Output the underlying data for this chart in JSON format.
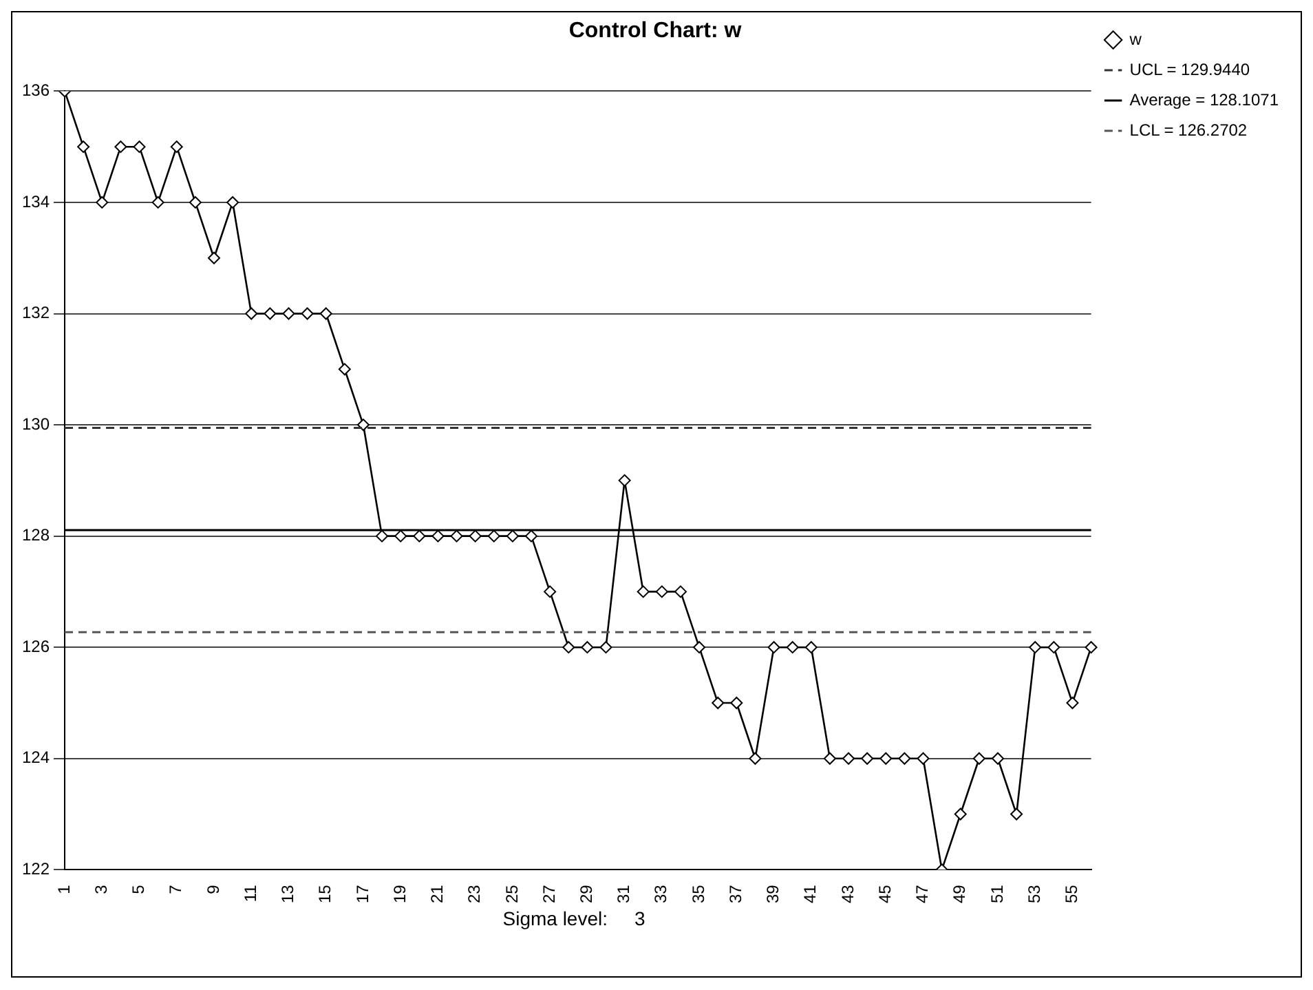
{
  "chart_data": {
    "type": "line",
    "title": "Control Chart: w",
    "categories": [
      "1",
      null,
      "3",
      null,
      "5",
      null,
      "7",
      null,
      "9",
      null,
      "11",
      null,
      "13",
      null,
      "15",
      null,
      "17",
      null,
      "19",
      null,
      "21",
      null,
      "23",
      null,
      "25",
      null,
      "27",
      null,
      "29",
      null,
      "31",
      null,
      "33",
      null,
      "35",
      null,
      "37",
      null,
      "39",
      null,
      "41",
      null,
      "43",
      null,
      "45",
      null,
      "47",
      null,
      "49",
      null,
      "51",
      null,
      "53",
      null,
      "55",
      null
    ],
    "series": [
      {
        "name": "w",
        "color": "#000000",
        "values": [
          136,
          135,
          134,
          135,
          135,
          134,
          135,
          134,
          133,
          134,
          132,
          132,
          132,
          132,
          132,
          131,
          130,
          128,
          128,
          128,
          128,
          128,
          128,
          128,
          128,
          128,
          127,
          126,
          126,
          126,
          129,
          127,
          127,
          127,
          126,
          125,
          125,
          124,
          126,
          126,
          126,
          124,
          124,
          124,
          124,
          124,
          124,
          122,
          123,
          124,
          124,
          123,
          126,
          126,
          125,
          126
        ]
      }
    ],
    "ylim": [
      122,
      136
    ],
    "yticks": [
      122,
      124,
      126,
      128,
      130,
      132,
      134,
      136
    ],
    "ref_lines": [
      {
        "axis": "y",
        "value": 129.944,
        "label": "UCL = 129.9440",
        "color": "#333333",
        "line_style": "dashed"
      },
      {
        "axis": "y",
        "value": 128.1071,
        "label": "Average = 128.1071",
        "color": "#000000",
        "line_style": "solid"
      },
      {
        "axis": "y",
        "value": 126.2702,
        "label": "LCL = 126.2702",
        "color": "#555555",
        "line_style": "dashed"
      }
    ],
    "grid": "y",
    "legend": "right",
    "marker": "diamond",
    "line_style": "solid",
    "annotations": [
      "Sigma level:     3"
    ]
  }
}
